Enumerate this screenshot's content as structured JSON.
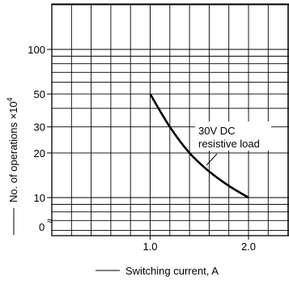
{
  "chart_data": {
    "type": "line",
    "title": "",
    "xlabel": "Switching current, A",
    "ylabel": "No. of operations ×10",
    "ylabel_exponent": "4",
    "x_scale": "linear",
    "y_scale": "log",
    "xlim": [
      0,
      2.5
    ],
    "ylim": [
      5,
      400
    ],
    "x_ticks": [
      {
        "value": 1.0,
        "label": "1.0"
      },
      {
        "value": 2.0,
        "label": "2.0"
      }
    ],
    "y_ticks": [
      {
        "value": 10,
        "label": "10"
      },
      {
        "value": 20,
        "label": "20"
      },
      {
        "value": 30,
        "label": "30"
      },
      {
        "value": 50,
        "label": "50"
      },
      {
        "value": 100,
        "label": "100"
      }
    ],
    "y_zero_label": "0",
    "axis_break": "≈",
    "grid": true,
    "series": [
      {
        "name": "",
        "x": [
          1.0,
          1.2,
          1.4,
          1.6,
          1.8,
          2.0
        ],
        "y": [
          50,
          30,
          20,
          15,
          12,
          10
        ]
      }
    ],
    "annotations": [
      {
        "text": "30V DC"
      },
      {
        "text": "resistive load"
      }
    ]
  }
}
